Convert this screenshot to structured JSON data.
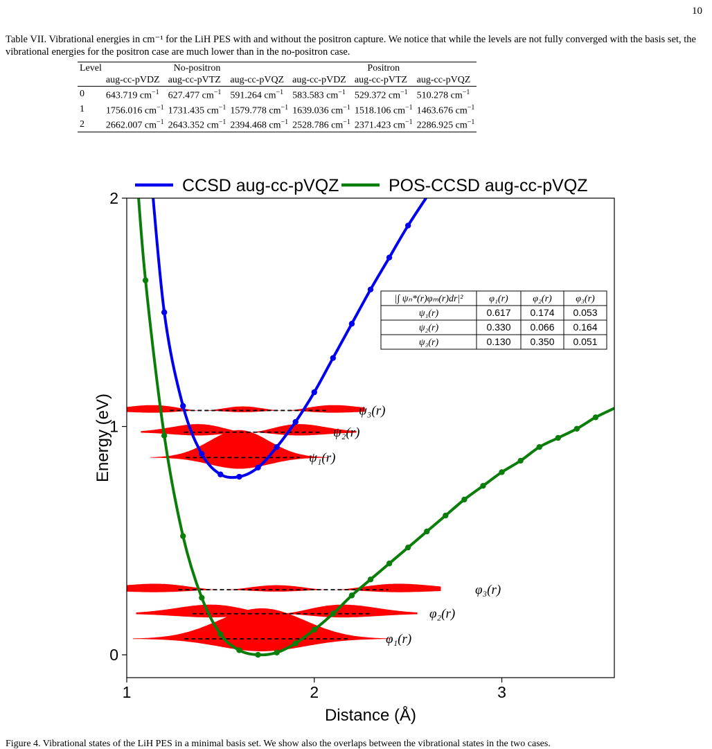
{
  "page_number": "10",
  "caption": "Table VII. Vibrational energies in cm⁻¹ for the LiH PES with and without the positron capture. We notice that while the levels are not fully converged with the basis set, the vibrational energies for the positron case are much lower than in the no-positron case.",
  "table": {
    "col_level": "Level",
    "group_no_positron": "No-positron",
    "group_positron": "Positron",
    "basis": [
      "aug-cc-pVDZ",
      "aug-cc-pVTZ",
      "aug-cc-pVQZ",
      "aug-cc-pVDZ",
      "aug-cc-pVTZ",
      "aug-cc-pVQZ"
    ],
    "unit": "cm",
    "rows": [
      {
        "level": "0",
        "values": [
          "643.719",
          "627.477",
          "591.264",
          "583.583",
          "529.372",
          "510.278"
        ]
      },
      {
        "level": "1",
        "values": [
          "1756.016",
          "1731.435",
          "1579.778",
          "1639.036",
          "1518.106",
          "1463.676"
        ]
      },
      {
        "level": "2",
        "values": [
          "2662.007",
          "2643.352",
          "2394.468",
          "2528.786",
          "2371.423",
          "2286.925"
        ]
      }
    ]
  },
  "chart_data": {
    "type": "line",
    "xlabel": "Distance (Å)",
    "ylabel": "Energy (eV)",
    "xlim": [
      1.0,
      3.6
    ],
    "ylim": [
      -0.1,
      2.0
    ],
    "x_ticks": [
      1,
      2,
      3
    ],
    "y_ticks": [
      0,
      1,
      2
    ],
    "series": [
      {
        "name": "CCSD aug-cc-pVQZ",
        "color": "#0000ee",
        "x": [
          1.2,
          1.3,
          1.4,
          1.5,
          1.6,
          1.7,
          1.8,
          1.9,
          2.0,
          2.1,
          2.2,
          2.3,
          2.4,
          2.5
        ],
        "y": [
          1.5,
          1.09,
          0.88,
          0.79,
          0.78,
          0.82,
          0.91,
          1.02,
          1.15,
          1.3,
          1.45,
          1.6,
          1.74,
          1.88
        ]
      },
      {
        "name": "POS-CCSD aug-cc-pVQZ",
        "color": "#0a7d0a",
        "x": [
          1.1,
          1.2,
          1.3,
          1.4,
          1.5,
          1.6,
          1.7,
          1.8,
          1.9,
          2.0,
          2.1,
          2.2,
          2.3,
          2.4,
          2.5,
          2.6,
          2.7,
          2.8,
          2.9,
          3.0,
          3.1,
          3.2,
          3.3,
          3.4,
          3.5
        ],
        "y": [
          1.64,
          0.96,
          0.52,
          0.25,
          0.09,
          0.02,
          0.0,
          0.01,
          0.05,
          0.11,
          0.18,
          0.26,
          0.33,
          0.4,
          0.47,
          0.54,
          0.61,
          0.68,
          0.74,
          0.8,
          0.85,
          0.91,
          0.95,
          0.99,
          1.04
        ]
      }
    ],
    "levels": [
      {
        "label": "ψ₁(r)",
        "energy": 0.864,
        "x_center": 1.6
      },
      {
        "label": "ψ₂(r)",
        "energy": 0.975,
        "x_center": 1.65
      },
      {
        "label": "ψ₃(r)",
        "energy": 1.07,
        "x_center": 1.62
      },
      {
        "label": "φ₁(r)",
        "energy": 0.07,
        "x_center": 1.72
      },
      {
        "label": "φ₂(r)",
        "energy": 0.18,
        "x_center": 1.8
      },
      {
        "label": "φ₃(r)",
        "energy": 0.285,
        "x_center": 1.8
      }
    ],
    "overlap_table": {
      "header": "|∫ ψₙ*(r)φₘ(r)dr|²",
      "cols": [
        "φ₁(r)",
        "φ₂(r)",
        "φ₃(r)"
      ],
      "rows": [
        {
          "label": "ψ₁(r)",
          "values": [
            "0.617",
            "0.174",
            "0.053"
          ]
        },
        {
          "label": "ψ₂(r)",
          "values": [
            "0.330",
            "0.066",
            "0.164"
          ]
        },
        {
          "label": "ψ₃(r)",
          "values": [
            "0.130",
            "0.350",
            "0.051"
          ]
        }
      ]
    }
  },
  "bottom_caption": "Figure 4. Vibrational states of the LiH PES in a minimal basis set. We show also the overlaps between the vibrational states in the two cases."
}
